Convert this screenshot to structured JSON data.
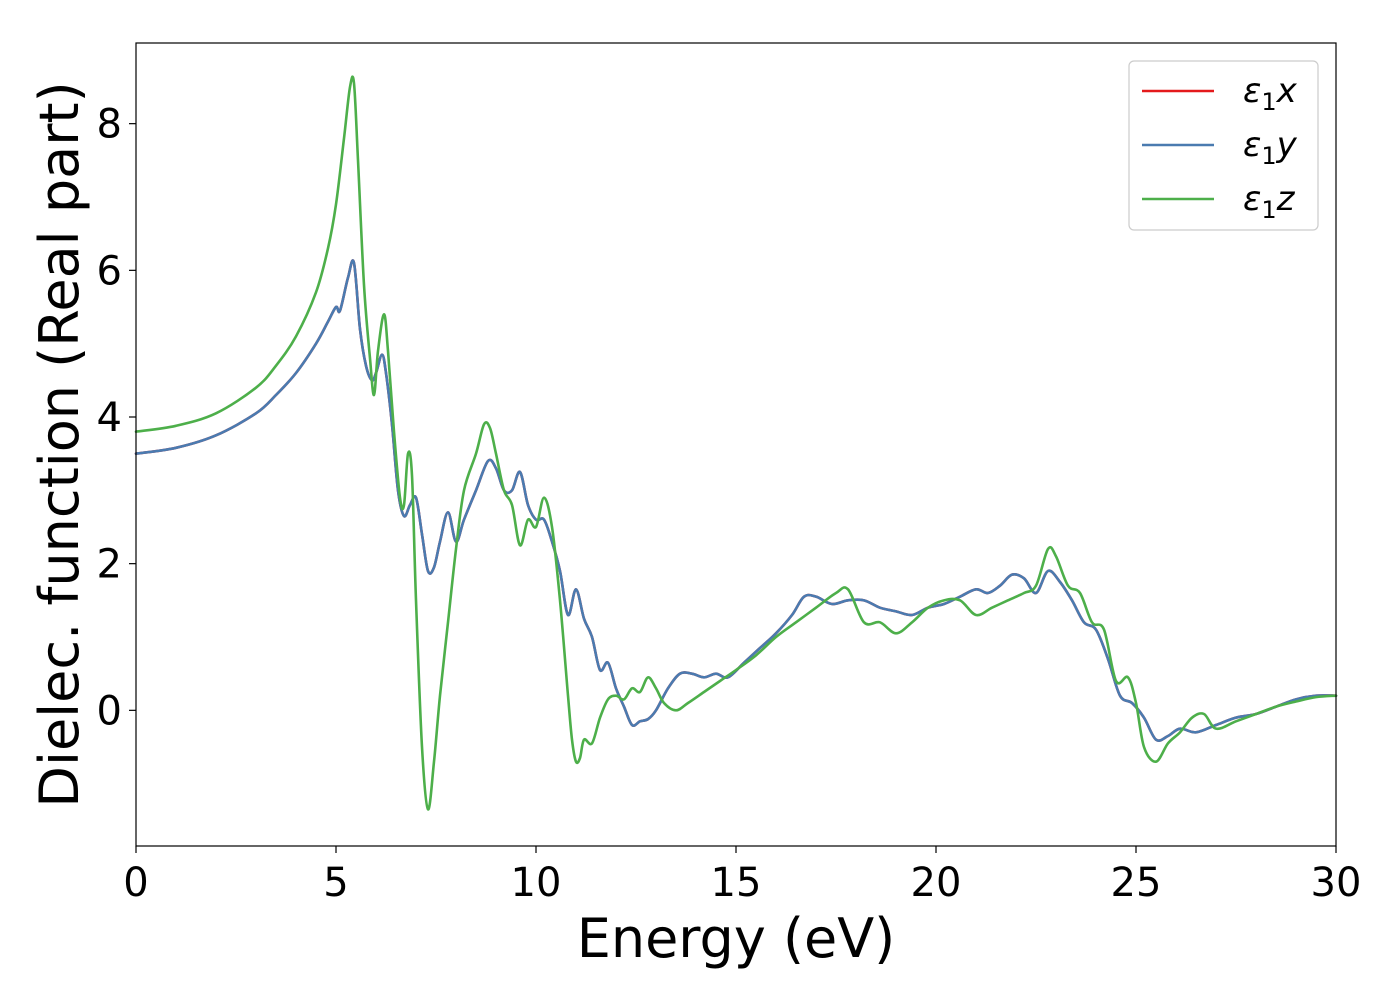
{
  "chart_data": {
    "type": "line",
    "title": "",
    "xlabel": "Energy (eV)",
    "ylabel": "Dielec. function (Real part)",
    "xlim": [
      0,
      30
    ],
    "ylim": [
      -1.85,
      9.1
    ],
    "xticks": [
      0,
      5,
      10,
      15,
      20,
      25,
      30
    ],
    "yticks": [
      0,
      2,
      4,
      6,
      8
    ],
    "grid": false,
    "legend_position": "top-right",
    "series": [
      {
        "name": "ε1x",
        "legend_label": {
          "base": "ε",
          "sub": "1",
          "var": "x"
        },
        "color": "#e41a1c",
        "x": [
          0,
          1,
          2,
          3,
          3.5,
          4,
          4.5,
          4.8,
          5.0,
          5.1,
          5.3,
          5.45,
          5.6,
          5.75,
          5.9,
          6.0,
          6.15,
          6.25,
          6.4,
          6.55,
          6.7,
          6.85,
          7.0,
          7.15,
          7.3,
          7.45,
          7.6,
          7.8,
          8.0,
          8.2,
          8.5,
          8.8,
          9.0,
          9.2,
          9.4,
          9.6,
          9.8,
          10.0,
          10.2,
          10.4,
          10.6,
          10.8,
          11.0,
          11.2,
          11.4,
          11.6,
          11.8,
          12.0,
          12.2,
          12.4,
          12.6,
          12.8,
          13.0,
          13.3,
          13.6,
          13.9,
          14.2,
          14.5,
          14.8,
          15.2,
          15.6,
          16.0,
          16.4,
          16.7,
          17.0,
          17.4,
          17.8,
          18.2,
          18.6,
          19.0,
          19.4,
          19.8,
          20.2,
          20.6,
          21.0,
          21.3,
          21.6,
          21.9,
          22.2,
          22.5,
          22.8,
          23.1,
          23.4,
          23.7,
          24.0,
          24.3,
          24.6,
          24.9,
          25.2,
          25.5,
          25.8,
          26.1,
          26.5,
          27.0,
          27.5,
          28.0,
          28.5,
          29.0,
          29.5,
          30.0
        ],
        "y": [
          3.5,
          3.58,
          3.75,
          4.05,
          4.3,
          4.6,
          5.0,
          5.3,
          5.5,
          5.45,
          5.9,
          6.1,
          5.2,
          4.7,
          4.5,
          4.6,
          4.85,
          4.6,
          3.9,
          3.0,
          2.65,
          2.8,
          2.9,
          2.4,
          1.9,
          1.95,
          2.3,
          2.7,
          2.3,
          2.6,
          3.0,
          3.4,
          3.3,
          3.0,
          3.0,
          3.25,
          2.8,
          2.6,
          2.6,
          2.3,
          1.9,
          1.3,
          1.65,
          1.25,
          1.0,
          0.55,
          0.65,
          0.3,
          0.05,
          -0.2,
          -0.15,
          -0.12,
          0.0,
          0.3,
          0.5,
          0.5,
          0.45,
          0.5,
          0.45,
          0.65,
          0.85,
          1.05,
          1.3,
          1.55,
          1.55,
          1.45,
          1.5,
          1.5,
          1.4,
          1.35,
          1.3,
          1.4,
          1.45,
          1.55,
          1.65,
          1.6,
          1.7,
          1.85,
          1.8,
          1.6,
          1.9,
          1.75,
          1.5,
          1.2,
          1.1,
          0.7,
          0.2,
          0.1,
          -0.1,
          -0.4,
          -0.35,
          -0.25,
          -0.3,
          -0.2,
          -0.1,
          -0.05,
          0.05,
          0.15,
          0.2,
          0.2
        ]
      },
      {
        "name": "ε1y",
        "legend_label": {
          "base": "ε",
          "sub": "1",
          "var": "y"
        },
        "color": "#4a7bb0",
        "x": [
          0,
          1,
          2,
          3,
          3.5,
          4,
          4.5,
          4.8,
          5.0,
          5.1,
          5.3,
          5.45,
          5.6,
          5.75,
          5.9,
          6.0,
          6.15,
          6.25,
          6.4,
          6.55,
          6.7,
          6.85,
          7.0,
          7.15,
          7.3,
          7.45,
          7.6,
          7.8,
          8.0,
          8.2,
          8.5,
          8.8,
          9.0,
          9.2,
          9.4,
          9.6,
          9.8,
          10.0,
          10.2,
          10.4,
          10.6,
          10.8,
          11.0,
          11.2,
          11.4,
          11.6,
          11.8,
          12.0,
          12.2,
          12.4,
          12.6,
          12.8,
          13.0,
          13.3,
          13.6,
          13.9,
          14.2,
          14.5,
          14.8,
          15.2,
          15.6,
          16.0,
          16.4,
          16.7,
          17.0,
          17.4,
          17.8,
          18.2,
          18.6,
          19.0,
          19.4,
          19.8,
          20.2,
          20.6,
          21.0,
          21.3,
          21.6,
          21.9,
          22.2,
          22.5,
          22.8,
          23.1,
          23.4,
          23.7,
          24.0,
          24.3,
          24.6,
          24.9,
          25.2,
          25.5,
          25.8,
          26.1,
          26.5,
          27.0,
          27.5,
          28.0,
          28.5,
          29.0,
          29.5,
          30.0
        ],
        "y": [
          3.5,
          3.58,
          3.75,
          4.05,
          4.3,
          4.6,
          5.0,
          5.3,
          5.5,
          5.45,
          5.9,
          6.1,
          5.2,
          4.7,
          4.5,
          4.6,
          4.85,
          4.6,
          3.9,
          3.0,
          2.65,
          2.8,
          2.9,
          2.4,
          1.9,
          1.95,
          2.3,
          2.7,
          2.3,
          2.6,
          3.0,
          3.4,
          3.3,
          3.0,
          3.0,
          3.25,
          2.8,
          2.6,
          2.6,
          2.3,
          1.9,
          1.3,
          1.65,
          1.25,
          1.0,
          0.55,
          0.65,
          0.3,
          0.05,
          -0.2,
          -0.15,
          -0.12,
          0.0,
          0.3,
          0.5,
          0.5,
          0.45,
          0.5,
          0.45,
          0.65,
          0.85,
          1.05,
          1.3,
          1.55,
          1.55,
          1.45,
          1.5,
          1.5,
          1.4,
          1.35,
          1.3,
          1.4,
          1.45,
          1.55,
          1.65,
          1.6,
          1.7,
          1.85,
          1.8,
          1.6,
          1.9,
          1.75,
          1.5,
          1.2,
          1.1,
          0.7,
          0.2,
          0.1,
          -0.1,
          -0.4,
          -0.35,
          -0.25,
          -0.3,
          -0.2,
          -0.1,
          -0.05,
          0.05,
          0.15,
          0.2,
          0.2
        ]
      },
      {
        "name": "ε1z",
        "legend_label": {
          "base": "ε",
          "sub": "1",
          "var": "z"
        },
        "color": "#4daf4a",
        "x": [
          0,
          1,
          2,
          3,
          3.5,
          4,
          4.5,
          4.8,
          5.0,
          5.2,
          5.35,
          5.45,
          5.55,
          5.7,
          5.85,
          5.95,
          6.05,
          6.2,
          6.3,
          6.45,
          6.6,
          6.7,
          6.8,
          6.9,
          7.0,
          7.15,
          7.3,
          7.45,
          7.6,
          7.8,
          8.0,
          8.2,
          8.5,
          8.7,
          8.85,
          9.0,
          9.2,
          9.4,
          9.6,
          9.8,
          10.0,
          10.2,
          10.4,
          10.6,
          10.8,
          10.9,
          11.0,
          11.1,
          11.2,
          11.4,
          11.6,
          11.8,
          12.0,
          12.2,
          12.4,
          12.6,
          12.8,
          13.0,
          13.2,
          13.5,
          13.8,
          14.2,
          14.6,
          15.0,
          15.5,
          16.0,
          16.5,
          17.0,
          17.5,
          17.8,
          18.2,
          18.6,
          19.0,
          19.4,
          19.8,
          20.2,
          20.6,
          21.0,
          21.4,
          21.8,
          22.2,
          22.5,
          22.8,
          23.0,
          23.3,
          23.6,
          23.9,
          24.2,
          24.5,
          24.8,
          25.0,
          25.2,
          25.5,
          25.8,
          26.1,
          26.4,
          26.7,
          27.0,
          27.5,
          28.0,
          28.5,
          29.0,
          29.5,
          30.0
        ],
        "y": [
          3.8,
          3.88,
          4.05,
          4.4,
          4.7,
          5.1,
          5.7,
          6.3,
          6.9,
          7.8,
          8.5,
          8.55,
          7.5,
          5.8,
          4.8,
          4.3,
          4.9,
          5.4,
          4.9,
          3.8,
          2.9,
          2.8,
          3.5,
          3.2,
          1.5,
          -0.5,
          -1.35,
          -0.7,
          0.2,
          1.2,
          2.2,
          3.0,
          3.5,
          3.9,
          3.85,
          3.5,
          3.0,
          2.8,
          2.25,
          2.6,
          2.5,
          2.9,
          2.5,
          1.5,
          0.2,
          -0.4,
          -0.7,
          -0.65,
          -0.4,
          -0.45,
          -0.1,
          0.15,
          0.2,
          0.15,
          0.3,
          0.25,
          0.45,
          0.3,
          0.1,
          0.0,
          0.1,
          0.25,
          0.4,
          0.55,
          0.75,
          1.0,
          1.2,
          1.4,
          1.6,
          1.65,
          1.2,
          1.2,
          1.05,
          1.2,
          1.4,
          1.5,
          1.5,
          1.3,
          1.4,
          1.5,
          1.6,
          1.7,
          2.2,
          2.1,
          1.7,
          1.6,
          1.2,
          1.1,
          0.4,
          0.45,
          0.1,
          -0.5,
          -0.7,
          -0.45,
          -0.3,
          -0.1,
          -0.05,
          -0.25,
          -0.15,
          -0.05,
          0.05,
          0.12,
          0.18,
          0.2
        ]
      }
    ]
  }
}
